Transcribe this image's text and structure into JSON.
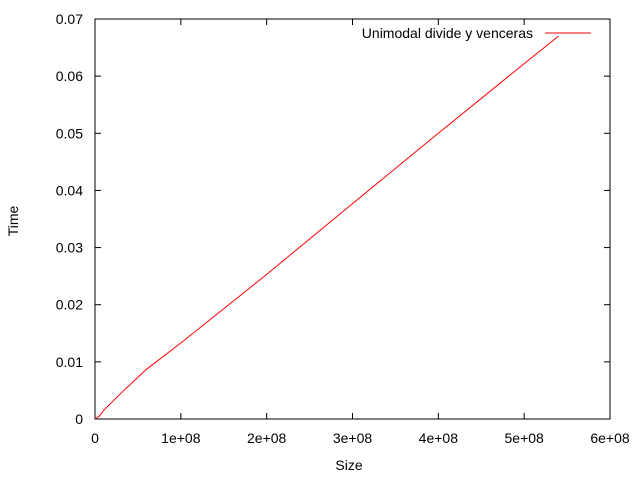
{
  "chart_data": {
    "type": "line",
    "title": "",
    "xlabel": "Size",
    "ylabel": "Time",
    "xlim": [
      0,
      600000000
    ],
    "ylim": [
      0,
      0.07
    ],
    "xticks": [
      0,
      100000000,
      200000000,
      300000000,
      400000000,
      500000000,
      600000000
    ],
    "xtick_labels": [
      "0",
      "1e+08",
      "2e+08",
      "3e+08",
      "4e+08",
      "5e+08",
      "6e+08"
    ],
    "yticks": [
      0,
      0.01,
      0.02,
      0.03,
      0.04,
      0.05,
      0.06,
      0.07
    ],
    "ytick_labels": [
      "0",
      "0.01",
      "0.02",
      "0.03",
      "0.04",
      "0.05",
      "0.06",
      "0.07"
    ],
    "grid": false,
    "legend_position": "top-right",
    "series": [
      {
        "name": "Unimodal divide y venceras",
        "color": "#ff0000",
        "x": [
          0,
          5000000,
          10000000,
          30000000,
          60000000,
          100000000,
          200000000,
          300000000,
          400000000,
          500000000,
          540000000
        ],
        "y": [
          0,
          0.0005,
          0.0015,
          0.0045,
          0.0087,
          0.0133,
          0.0253,
          0.0377,
          0.05,
          0.0622,
          0.067
        ]
      }
    ]
  }
}
